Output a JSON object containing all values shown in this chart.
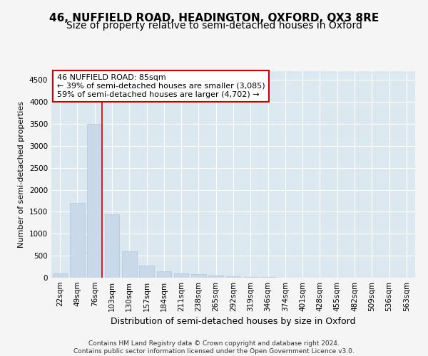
{
  "title_line1": "46, NUFFIELD ROAD, HEADINGTON, OXFORD, OX3 8RE",
  "title_line2": "Size of property relative to semi-detached houses in Oxford",
  "xlabel": "Distribution of semi-detached houses by size in Oxford",
  "ylabel": "Number of semi-detached properties",
  "footnote": "Contains HM Land Registry data © Crown copyright and database right 2024.\nContains public sector information licensed under the Open Government Licence v3.0.",
  "categories": [
    "22sqm",
    "49sqm",
    "76sqm",
    "103sqm",
    "130sqm",
    "157sqm",
    "184sqm",
    "211sqm",
    "238sqm",
    "265sqm",
    "292sqm",
    "319sqm",
    "346sqm",
    "374sqm",
    "401sqm",
    "428sqm",
    "455sqm",
    "482sqm",
    "509sqm",
    "536sqm",
    "563sqm"
  ],
  "values": [
    100,
    1700,
    3500,
    1450,
    600,
    270,
    145,
    90,
    75,
    55,
    35,
    20,
    10,
    5,
    2,
    2,
    1,
    1,
    1,
    1,
    1
  ],
  "bar_color": "#c9d9ea",
  "bar_edge_color": "#b0c4d8",
  "property_bin_index": 2,
  "vline_color": "#cc0000",
  "annotation_text_line1": "46 NUFFIELD ROAD: 85sqm",
  "annotation_text_line2": "← 39% of semi-detached houses are smaller (3,085)",
  "annotation_text_line3": "59% of semi-detached houses are larger (4,702) →",
  "annotation_box_facecolor": "#ffffff",
  "annotation_box_edgecolor": "#cc0000",
  "ylim_max": 4700,
  "yticks": [
    0,
    500,
    1000,
    1500,
    2000,
    2500,
    3000,
    3500,
    4000,
    4500
  ],
  "fig_facecolor": "#f5f5f5",
  "axes_facecolor": "#dce8f0",
  "grid_color": "#ffffff",
  "title1_fontsize": 11,
  "title2_fontsize": 10,
  "xlabel_fontsize": 9,
  "ylabel_fontsize": 8,
  "tick_fontsize": 7.5,
  "annotation_fontsize": 8,
  "footnote_fontsize": 6.5
}
